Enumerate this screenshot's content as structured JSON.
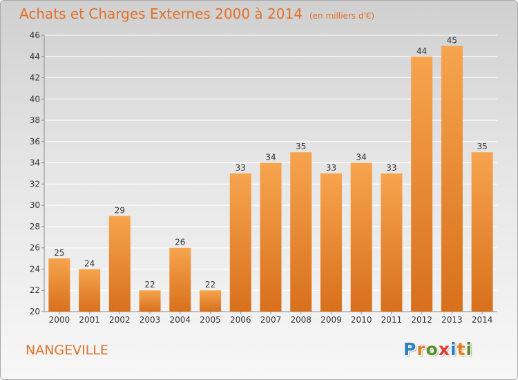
{
  "header": {
    "title": "Achats et Charges Externes 2000 à 2014",
    "unit": "(en milliers d'€)"
  },
  "footer": {
    "place": "NANGEVILLE",
    "logo": "Proxiti",
    "logo_colors": [
      "#2d7fc4",
      "#e87d1e",
      "#5a8f2a",
      "#e03a2f",
      "#2d7fc4",
      "#e87d1e",
      "#5a8f2a"
    ]
  },
  "chart_data": {
    "type": "bar",
    "title": "Achats et Charges Externes 2000 à 2014",
    "subtitle": "(en milliers d'€)",
    "categories": [
      "2000",
      "2001",
      "2002",
      "2003",
      "2004",
      "2005",
      "2006",
      "2007",
      "2008",
      "2009",
      "2010",
      "2011",
      "2012",
      "2013",
      "2014"
    ],
    "values": [
      25,
      24,
      29,
      22,
      26,
      22,
      33,
      34,
      35,
      33,
      34,
      33,
      44,
      45,
      35
    ],
    "ylim": [
      20,
      46
    ],
    "yticks": [
      20,
      22,
      24,
      26,
      28,
      30,
      32,
      34,
      36,
      38,
      40,
      42,
      44,
      46
    ],
    "grid": true,
    "legend": "none",
    "colors": {
      "bar_top": "#f7a44e",
      "bar_bottom": "#d8701c",
      "grid": "#ffffff",
      "axis": "#8c8c8c",
      "text": "#333333"
    }
  }
}
